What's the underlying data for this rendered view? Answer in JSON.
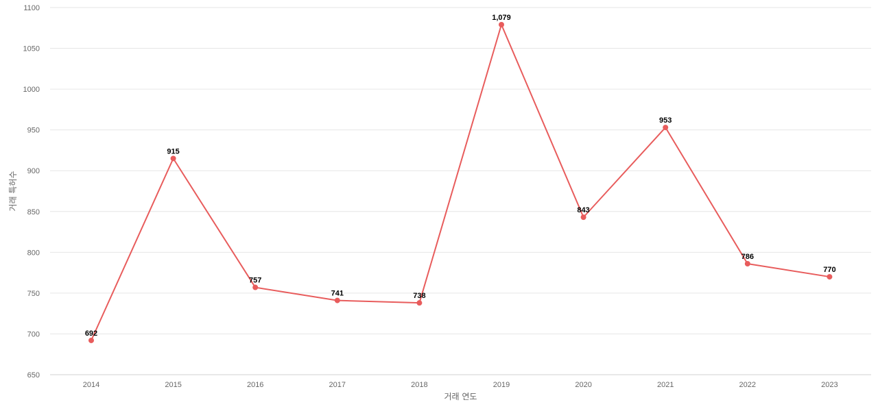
{
  "chart_data": {
    "type": "line",
    "title": "",
    "xlabel": "거래 연도",
    "ylabel": "거래 특허수",
    "categories": [
      "2014",
      "2015",
      "2016",
      "2017",
      "2018",
      "2019",
      "2020",
      "2021",
      "2022",
      "2023"
    ],
    "series": [
      {
        "values": [
          692,
          915,
          757,
          741,
          738,
          1079,
          843,
          953,
          786,
          770
        ],
        "labels": [
          "692",
          "915",
          "757",
          "741",
          "738",
          "1,079",
          "843",
          "953",
          "786",
          "770"
        ],
        "color": "#e85c5c"
      }
    ],
    "ylim": [
      650,
      1100
    ],
    "yticks": [
      "650",
      "700",
      "750",
      "800",
      "850",
      "900",
      "950",
      "1000",
      "1050",
      "1100"
    ],
    "grid": true,
    "legend": "none"
  }
}
